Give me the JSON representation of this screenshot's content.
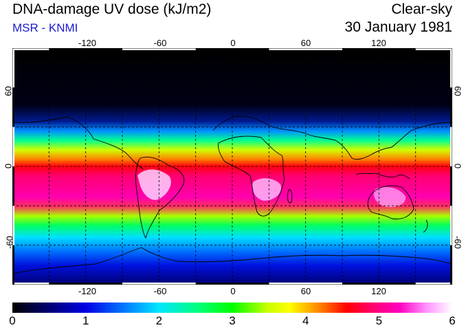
{
  "header": {
    "title": "DNA-damage UV dose (kJ/m2)",
    "source": "MSR - KNMI",
    "sky": "Clear-sky",
    "date": "30 January 1981"
  },
  "map": {
    "lon_labels": [
      "-120",
      "-60",
      "0",
      "60",
      "120"
    ],
    "lat_labels_left": [
      "60",
      "0",
      "-60"
    ],
    "lat_labels_right": [
      "60",
      "0",
      "-60"
    ]
  },
  "colorbar": {
    "ticks": [
      "0",
      "1",
      "2",
      "3",
      "4",
      "5",
      "6"
    ],
    "min": 0,
    "max": 6
  },
  "colors": {
    "source_text": "#1a1acc",
    "frame": "#000000"
  }
}
